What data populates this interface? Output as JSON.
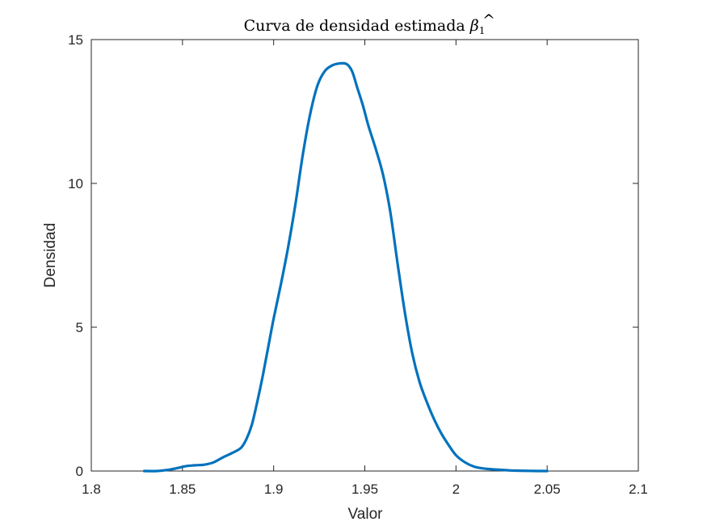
{
  "chart_data": {
    "type": "line",
    "title_text": "Curva de densidad estimada ",
    "title_math": {
      "symbol": "β",
      "accent": "^",
      "subscript": "1"
    },
    "xlabel": "Valor",
    "ylabel": "Densidad",
    "xlim": [
      1.8,
      2.1
    ],
    "ylim": [
      0,
      15
    ],
    "xticks": [
      1.8,
      1.85,
      1.9,
      1.95,
      2.0,
      2.05,
      2.1
    ],
    "xtick_labels": [
      "1.8",
      "1.85",
      "1.9",
      "1.95",
      "2",
      "2.05",
      "2.1"
    ],
    "yticks": [
      0,
      5,
      10,
      15
    ],
    "ytick_labels": [
      "0",
      "5",
      "10",
      "15"
    ],
    "grid": false,
    "line_color": "#0072BD",
    "series": [
      {
        "x": [
          1.829,
          1.836,
          1.842,
          1.847,
          1.852,
          1.857,
          1.862,
          1.867,
          1.872,
          1.877,
          1.882,
          1.885,
          1.888,
          1.891,
          1.894,
          1.897,
          1.9,
          1.904,
          1.908,
          1.912,
          1.916,
          1.92,
          1.924,
          1.928,
          1.932,
          1.936,
          1.94,
          1.943,
          1.946,
          1.949,
          1.952,
          1.956,
          1.96,
          1.964,
          1.968,
          1.972,
          1.976,
          1.98,
          1.984,
          1.988,
          1.992,
          1.996,
          2.0,
          2.005,
          2.01,
          2.015,
          2.02,
          2.025,
          2.03,
          2.035,
          2.04,
          2.045,
          2.05
        ],
        "y": [
          0.0,
          0.0,
          0.04,
          0.1,
          0.17,
          0.2,
          0.22,
          0.3,
          0.47,
          0.62,
          0.8,
          1.1,
          1.6,
          2.4,
          3.3,
          4.3,
          5.3,
          6.5,
          7.8,
          9.3,
          11.0,
          12.4,
          13.4,
          13.9,
          14.1,
          14.17,
          14.15,
          13.9,
          13.3,
          12.7,
          12.0,
          11.2,
          10.3,
          9.0,
          7.2,
          5.5,
          4.1,
          3.1,
          2.4,
          1.8,
          1.3,
          0.9,
          0.55,
          0.3,
          0.15,
          0.09,
          0.06,
          0.04,
          0.02,
          0.01,
          0.005,
          0.0,
          0.0
        ]
      }
    ]
  }
}
